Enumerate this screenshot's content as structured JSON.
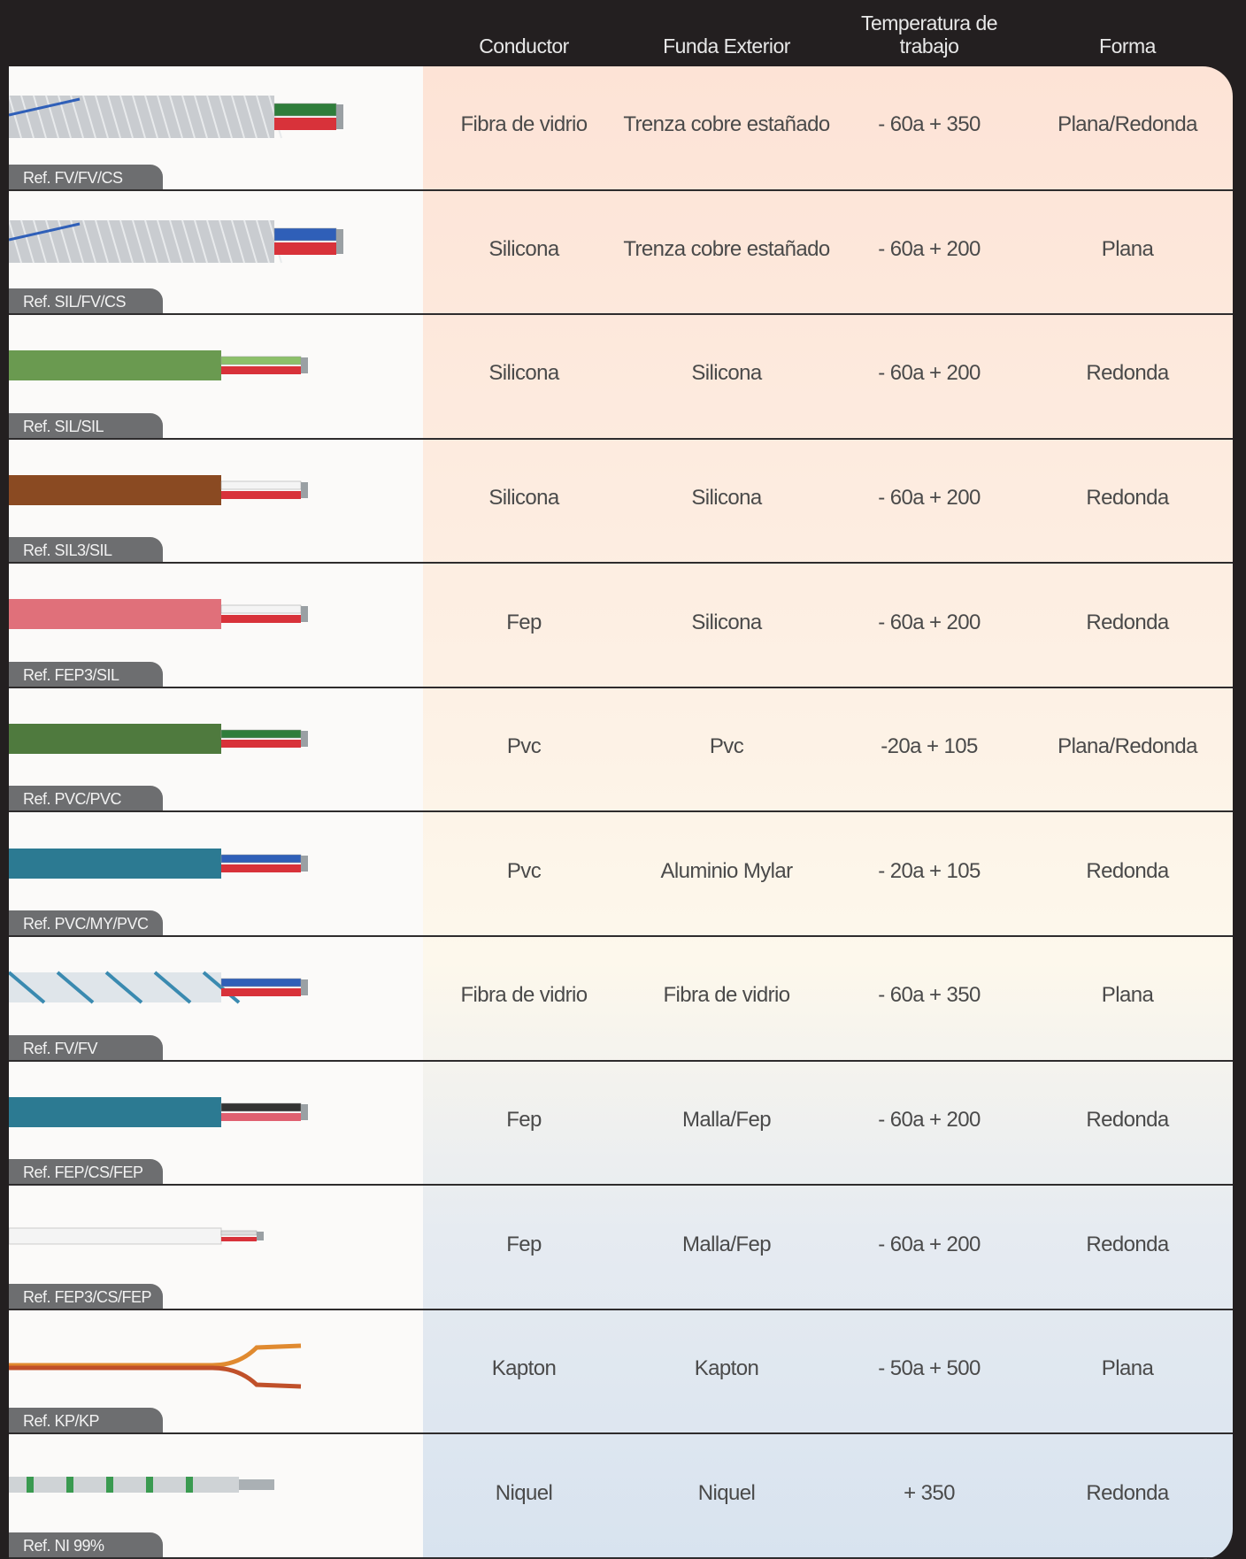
{
  "header": {
    "columns": [
      "Conductor",
      "Funda Exterior",
      "Temperatura de trabajo",
      "Forma"
    ]
  },
  "table": {
    "rows": [
      {
        "ref": "Ref. FV/FV/CS",
        "conductor": "Fibra de vidrio",
        "funda": "Trenza cobre estañado",
        "temperatura": "- 60a + 350",
        "forma": "Plana/Redonda"
      },
      {
        "ref": "Ref. SIL/FV/CS",
        "conductor": "Silicona",
        "funda": "Trenza cobre estañado",
        "temperatura": "- 60a + 200",
        "forma": "Plana"
      },
      {
        "ref": "Ref. SIL/SIL",
        "conductor": "Silicona",
        "funda": "Silicona",
        "temperatura": "- 60a + 200",
        "forma": "Redonda"
      },
      {
        "ref": "Ref. SIL3/SIL",
        "conductor": "Silicona",
        "funda": "Silicona",
        "temperatura": "- 60a + 200",
        "forma": "Redonda"
      },
      {
        "ref": "Ref. FEP3/SIL",
        "conductor": "Fep",
        "funda": "Silicona",
        "temperatura": "- 60a + 200",
        "forma": "Redonda"
      },
      {
        "ref": "Ref. PVC/PVC",
        "conductor": "Pvc",
        "funda": "Pvc",
        "temperatura": "-20a + 105",
        "forma": "Plana/Redonda"
      },
      {
        "ref": "Ref. PVC/MY/PVC",
        "conductor": "Pvc",
        "funda": "Aluminio Mylar",
        "temperatura": "- 20a + 105",
        "forma": "Redonda"
      },
      {
        "ref": "Ref. FV/FV",
        "conductor": "Fibra de vidrio",
        "funda": "Fibra de vidrio",
        "temperatura": "- 60a + 350",
        "forma": "Plana"
      },
      {
        "ref": "Ref. FEP/CS/FEP",
        "conductor": "Fep",
        "funda": "Malla/Fep",
        "temperatura": "- 60a + 200",
        "forma": "Redonda"
      },
      {
        "ref": "Ref. FEP3/CS/FEP",
        "conductor": "Fep",
        "funda": "Malla/Fep",
        "temperatura": "- 60a + 200",
        "forma": "Redonda"
      },
      {
        "ref": "Ref. KP/KP",
        "conductor": "Kapton",
        "funda": "Kapton",
        "temperatura": "- 50a + 500",
        "forma": "Plana"
      },
      {
        "ref": "Ref. NI 99%",
        "conductor": "Niquel",
        "funda": "Niquel",
        "temperatura": "+ 350",
        "forma": "Redonda"
      }
    ]
  }
}
